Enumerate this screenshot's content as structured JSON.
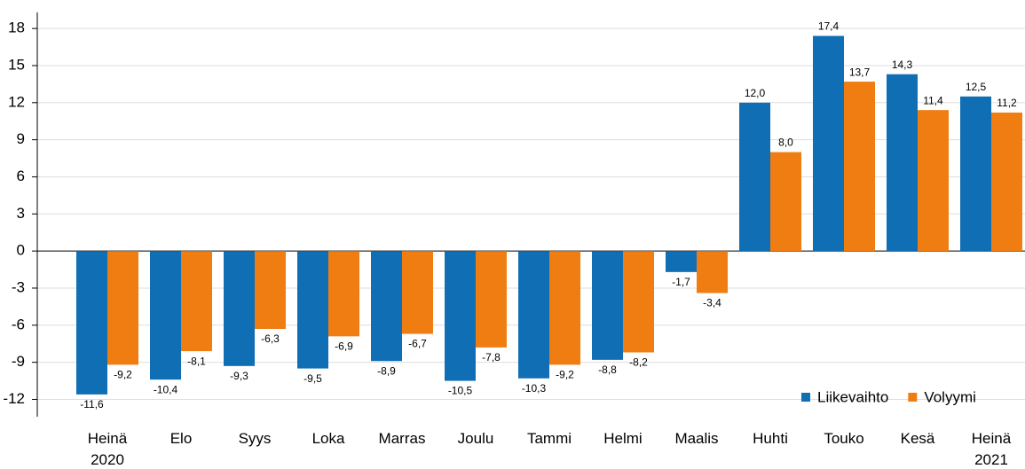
{
  "chart_data": {
    "type": "bar",
    "categories": [
      "Heinä\n2020",
      "Elo",
      "Syys",
      "Loka",
      "Marras",
      "Joulu",
      "Tammi",
      "Helmi",
      "Maalis",
      "Huhti",
      "Touko",
      "Kesä",
      "Heinä\n2021"
    ],
    "series": [
      {
        "name": "Liikevaihto",
        "color": "#0f6eb4",
        "values": [
          -11.6,
          -10.4,
          -9.3,
          -9.5,
          -8.9,
          -10.5,
          -10.3,
          -8.8,
          -1.7,
          12.0,
          17.4,
          14.3,
          12.5
        ],
        "value_labels": [
          "-11,6",
          "-10,4",
          "-9,3",
          "-9,5",
          "-8,9",
          "-10,5",
          "-10,3",
          "-8,8",
          "-1,7",
          "12,0",
          "17,4",
          "14,3",
          "12,5"
        ]
      },
      {
        "name": "Volyymi",
        "color": "#ef7d12",
        "values": [
          -9.2,
          -8.1,
          -6.3,
          -6.9,
          -6.7,
          -7.8,
          -9.2,
          -8.2,
          -3.4,
          8.0,
          13.7,
          11.4,
          11.2
        ],
        "value_labels": [
          "-9,2",
          "-8,1",
          "-6,3",
          "-6,9",
          "-6,7",
          "-7,8",
          "-9,2",
          "-8,2",
          "-3,4",
          "8,0",
          "13,7",
          "11,4",
          "11,2"
        ]
      }
    ],
    "ylim": [
      -13.4,
      19.3
    ],
    "yticks": [
      -12,
      -9,
      -6,
      -3,
      0,
      3,
      6,
      9,
      12,
      15,
      18
    ],
    "grid": true,
    "legend": "bottom-right"
  }
}
